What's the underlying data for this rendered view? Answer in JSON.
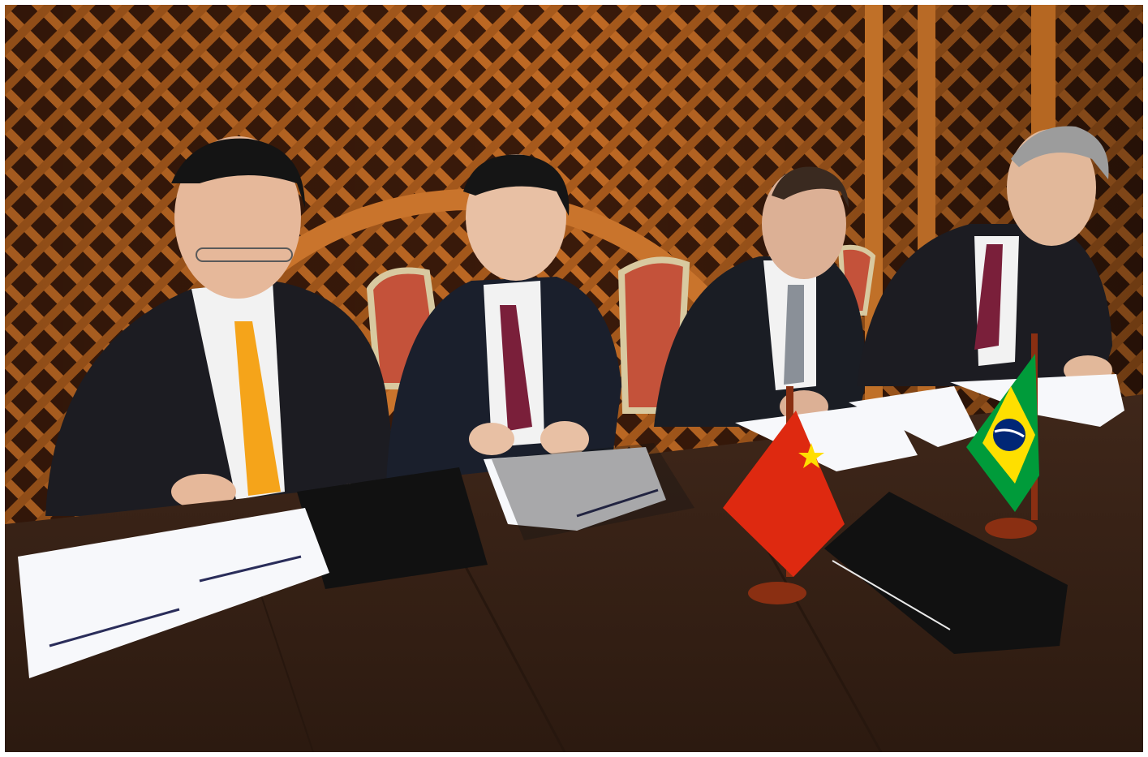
{
  "photo": {
    "description_visible_text": "",
    "colors": {
      "wall_wood": "#b5651d",
      "lattice_dark": "#3a1a0a",
      "tablecloth": "#3b2418",
      "suit_dark": "#1c1c22",
      "shirt_white": "#f2f2f2",
      "tie_orange": "#f5a41a",
      "tie_burgundy": "#7a1f3a",
      "tie_grey": "#8a9098",
      "paper": "#f7f8fb",
      "folder_black": "#111111",
      "flag_china_red": "#de2910",
      "flag_china_star": "#ffde00",
      "flag_brazil_green": "#009b3a",
      "flag_brazil_yellow": "#fedf00",
      "flag_brazil_blue": "#002776",
      "flag_stand": "#8a2f12",
      "chair_cushion": "#c4523a"
    },
    "icons": [
      "china-flag-icon",
      "brazil-flag-icon"
    ]
  }
}
